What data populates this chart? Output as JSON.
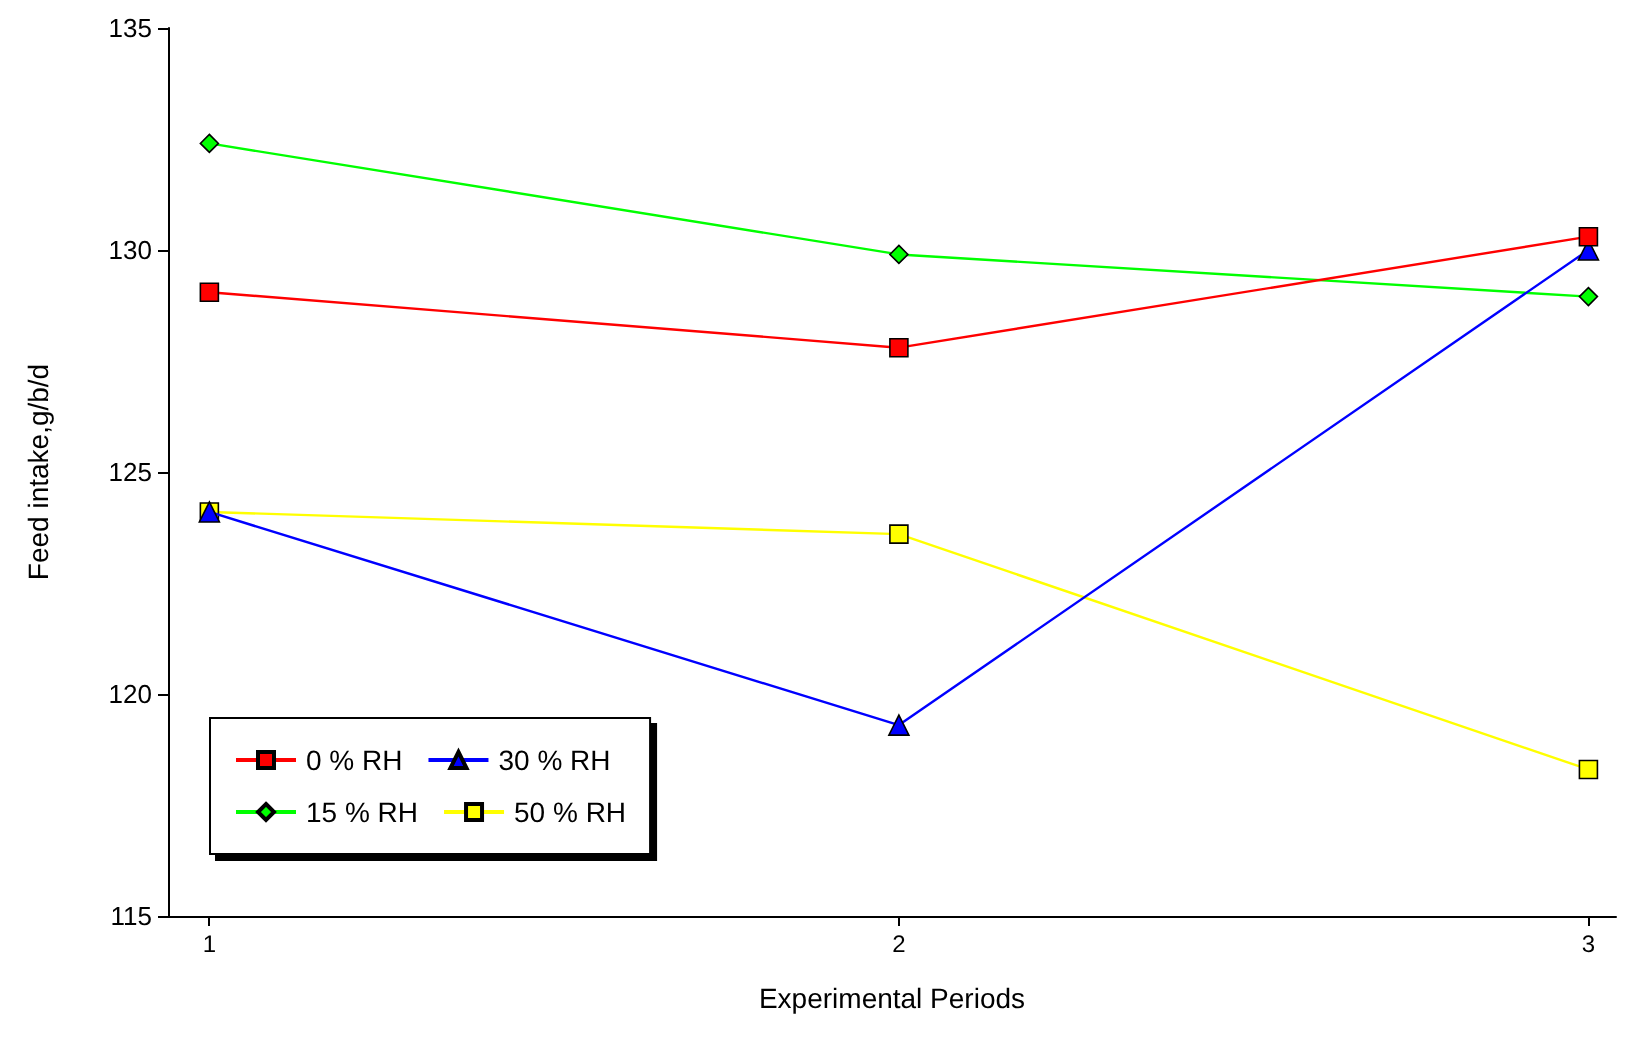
{
  "chart_data": {
    "type": "line",
    "xlabel": "Experimental Periods",
    "ylabel": "Feed intake,g/b/d",
    "x": [
      1,
      2,
      3
    ],
    "series": [
      {
        "name": "0 % RH",
        "color": "#ff0000",
        "marker": "square",
        "values": [
          129.05,
          127.8,
          130.3
        ]
      },
      {
        "name": "30 % RH",
        "color": "#0000ff",
        "marker": "triangle",
        "values": [
          124.1,
          119.3,
          130.0
        ]
      },
      {
        "name": "15 % RH",
        "color": "#00ff00",
        "marker": "diamond",
        "values": [
          132.4,
          129.9,
          128.95
        ]
      },
      {
        "name": "50 % RH",
        "color": "#ffff00",
        "marker": "square",
        "values": [
          124.1,
          123.6,
          118.3
        ]
      }
    ],
    "xlim": [
      0.94,
      3.04
    ],
    "xticks": [
      1,
      2,
      3
    ],
    "ylim": [
      115,
      135
    ],
    "yticks": [
      115,
      120,
      125,
      130,
      135
    ],
    "grid": false,
    "legend": "bottom left",
    "line_style": "solid"
  }
}
